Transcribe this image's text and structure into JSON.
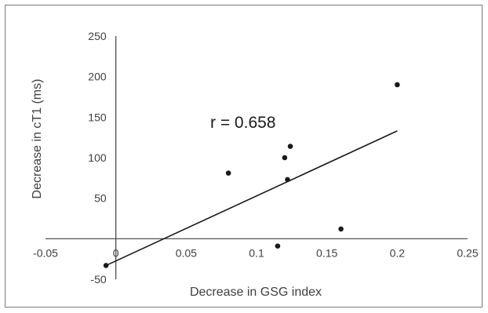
{
  "chart_data": {
    "type": "scatter",
    "title": "",
    "xlabel": "Decrease in GSG index",
    "ylabel": "Decrease in cT1 (ms)",
    "xlim": [
      -0.05,
      0.25
    ],
    "ylim": [
      -50,
      250
    ],
    "x_ticks": [
      "-0.05",
      "0",
      "0.05",
      "0.1",
      "0.15",
      "0.2",
      "0.25"
    ],
    "y_ticks": [
      "-50",
      "50",
      "100",
      "150",
      "200",
      "250"
    ],
    "grid": false,
    "legend": "none",
    "annotation": "r = 0.658",
    "series": [
      {
        "points": [
          {
            "x": -0.007,
            "y": -33
          },
          {
            "x": 0.08,
            "y": 81
          },
          {
            "x": 0.115,
            "y": -9
          },
          {
            "x": 0.12,
            "y": 100
          },
          {
            "x": 0.122,
            "y": 73
          },
          {
            "x": 0.124,
            "y": 114
          },
          {
            "x": 0.16,
            "y": 12
          },
          {
            "x": 0.2,
            "y": 190
          }
        ]
      }
    ],
    "trendline": {
      "x": [
        -0.007,
        0.2
      ],
      "y": [
        -33,
        133
      ]
    },
    "colors": {
      "points": "#1a1a1a",
      "line": "#1a1a1a",
      "axis": "#404040",
      "text": "#404040"
    }
  }
}
